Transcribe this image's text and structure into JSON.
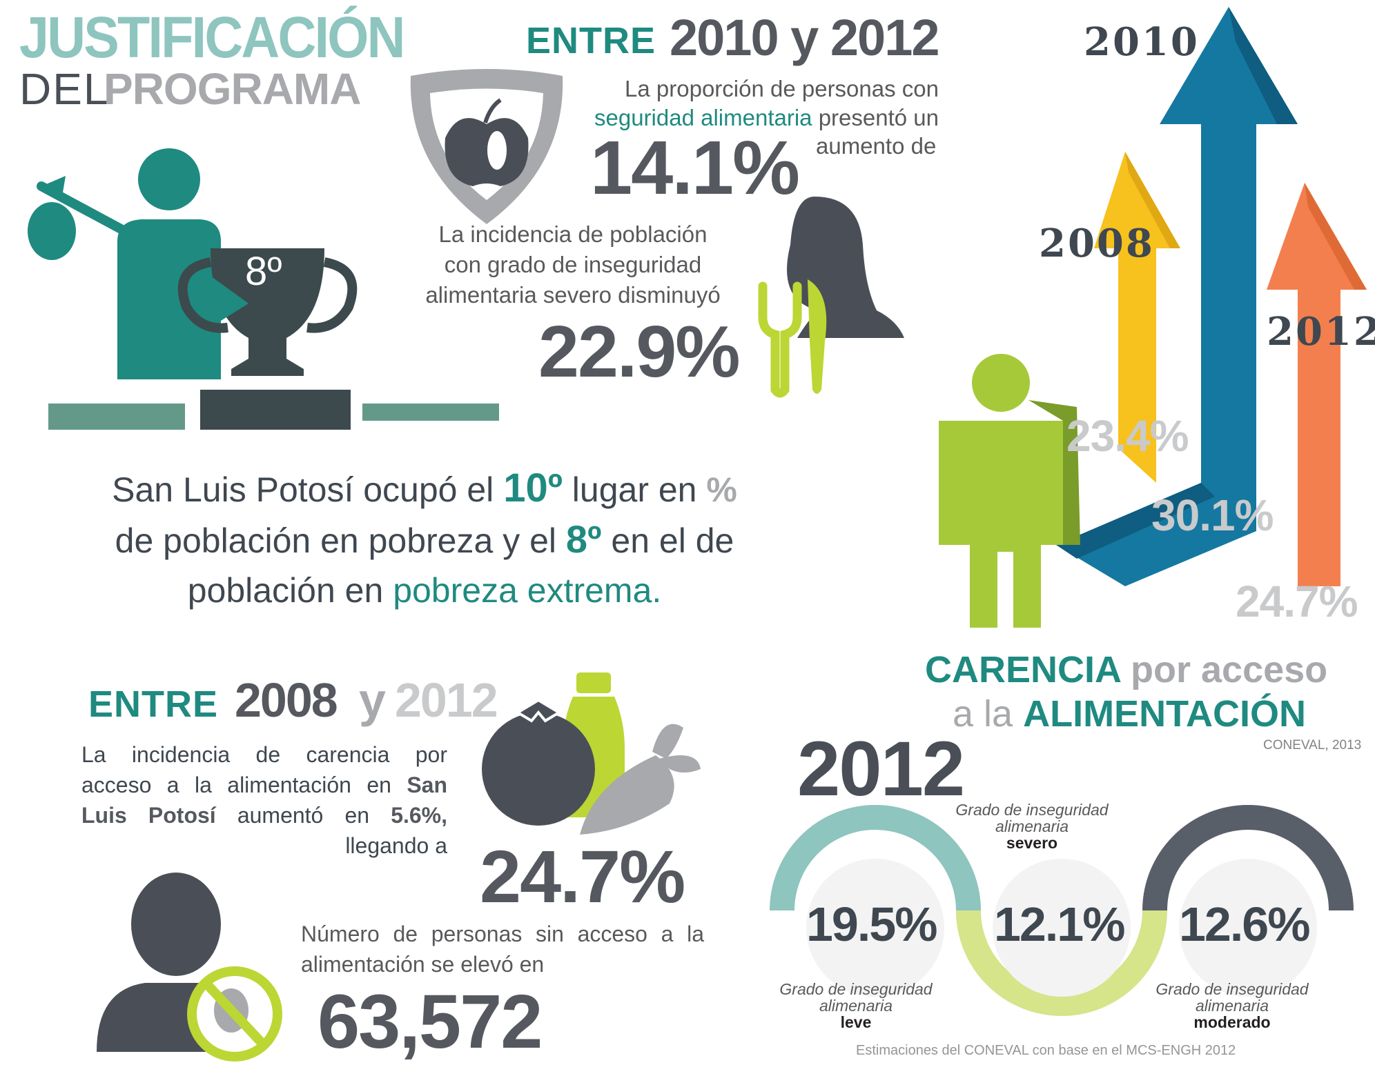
{
  "header": {
    "title_line1": "JUSTIFICACIÓN",
    "title_del": "DEL",
    "title_programa": "PROGRAMA"
  },
  "section_2010_2012": {
    "entre": "ENTRE",
    "years": "2010 y 2012",
    "food_security_text_a": "La proporción de personas con",
    "food_security_highlight": "seguridad alimentaria",
    "food_security_text_b": "presentó un",
    "food_security_text_c": "aumento de",
    "food_security_value": "14.1%",
    "severe_text_1": "La incidencia de población",
    "severe_text_2": "con grado de inseguridad",
    "severe_text_3": "alimentaria severo disminuyó",
    "severe_value": "22.9%"
  },
  "trophy_rank": "8º",
  "ranking": {
    "text_a": "San Luis Potosí ocupó el",
    "rank_poverty": "10º",
    "text_b": "lugar en",
    "pct_sign": "%",
    "text_c": "de población en pobreza y el",
    "rank_extreme": "8º",
    "text_d": "en el de",
    "text_e": "población en",
    "highlight_extreme": "pobreza extrema."
  },
  "arrows": {
    "year_2010": "2010",
    "year_2008": "2008",
    "year_2012": "2012",
    "value_2008": "23.4%",
    "value_2010": "30.1%",
    "value_2012": "24.7%"
  },
  "carencia": {
    "word1": "CARENCIA",
    "word2": "por acceso",
    "word3": "a la",
    "word4": "ALIMENTACIÓN",
    "source": "CONEVAL, 2013"
  },
  "section_2008_2012": {
    "entre": "ENTRE",
    "year_a": "2008",
    "y": "y",
    "year_b": "2012",
    "text_1": "La incidencia de carencia por",
    "text_2": "acceso a la alimentación en",
    "text_san": "San",
    "text_luis": "Luis Potosí",
    "text_aumento": "aumentó en",
    "increase": "5.6%,",
    "text_llegando": "llegando a",
    "value": "24.7%",
    "persons_text_1": "Número de personas sin acceso a la",
    "persons_text_2": "alimentación se elevó en",
    "persons_value": "63,572"
  },
  "insecurity_2012": {
    "year": "2012",
    "label_prefix": "Grado de inseguridad",
    "label_mid": "alimenaria",
    "leve_word": "leve",
    "leve_value": "19.5%",
    "severo_word": "severo",
    "severo_value": "12.1%",
    "moderado_word": "moderado",
    "moderado_value": "12.6%",
    "footnote": "Estimaciones del CONEVAL con base en el MCS-ENGH 2012"
  },
  "colors": {
    "teal": "#1f8a80",
    "light_teal": "#8ec5be",
    "grey": "#a7a9ac",
    "dark": "#4a4f57",
    "lime": "#bcd634",
    "yellow": "#f7c11e",
    "blue": "#1578a0",
    "orange": "#f37f4e"
  }
}
